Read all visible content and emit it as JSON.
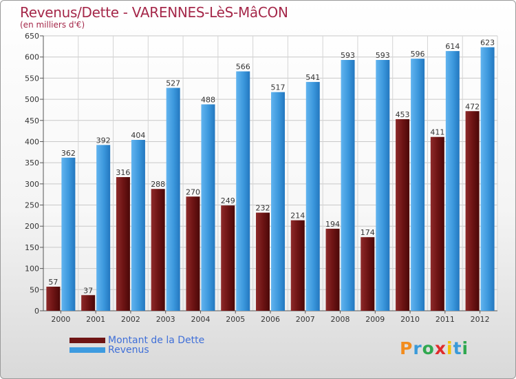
{
  "title": "Revenus/Dette - VARENNES-LèS-MâCON",
  "subtitle": "(en milliers d'€)",
  "logo": {
    "text": "Proxiti",
    "letters": [
      "P",
      "r",
      "o",
      "x",
      "i",
      "t",
      "i"
    ],
    "colors": [
      "#f28c1e",
      "#3a9ad9",
      "#2fa84f",
      "#e02b2b",
      "#f2c200",
      "#3a9ad9",
      "#2fa84f"
    ]
  },
  "chart_data": {
    "type": "bar",
    "title": "Revenus/Dette - VARENNES-LèS-MâCON",
    "subtitle": "(en milliers d'€)",
    "categories": [
      "2000",
      "2001",
      "2002",
      "2003",
      "2004",
      "2005",
      "2006",
      "2007",
      "2008",
      "2009",
      "2010",
      "2011",
      "2012"
    ],
    "series": [
      {
        "name": "Montant de la Dette",
        "color": "#7a1c1c",
        "values": [
          57,
          37,
          316,
          288,
          270,
          249,
          232,
          214,
          194,
          174,
          453,
          411,
          472
        ]
      },
      {
        "name": "Revenus",
        "color": "#3d9be0",
        "values": [
          362,
          392,
          404,
          527,
          488,
          566,
          517,
          541,
          593,
          593,
          596,
          614,
          623
        ]
      }
    ],
    "ylim": [
      0,
      650
    ],
    "yticks": [
      0,
      50,
      100,
      150,
      200,
      250,
      300,
      350,
      400,
      450,
      500,
      550,
      600,
      650
    ],
    "grid": true,
    "legend": "bottom-left"
  }
}
